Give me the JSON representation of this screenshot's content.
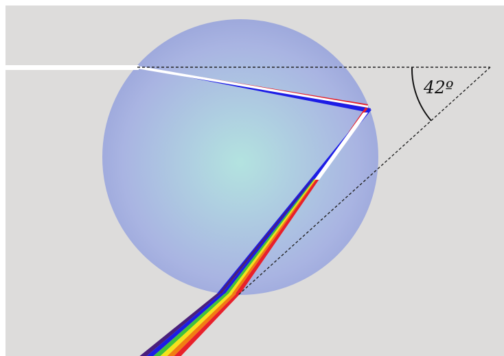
{
  "diagram": {
    "angle_label": "42º",
    "colors": {
      "background": "#dddcdb",
      "drop_fill_center": "#b3e3e0",
      "drop_fill_edge": "#a9b4e2",
      "drop_edge": "#9ea9dc",
      "white_light": "#ffffff",
      "red": "#e8202a",
      "orange": "#f27d12",
      "yellow": "#f5e21c",
      "green": "#41c23a",
      "blue": "#1c1ce6",
      "violet": "#4a1f7c",
      "construction_line": "#222222",
      "angle_arc": "#111111"
    }
  }
}
